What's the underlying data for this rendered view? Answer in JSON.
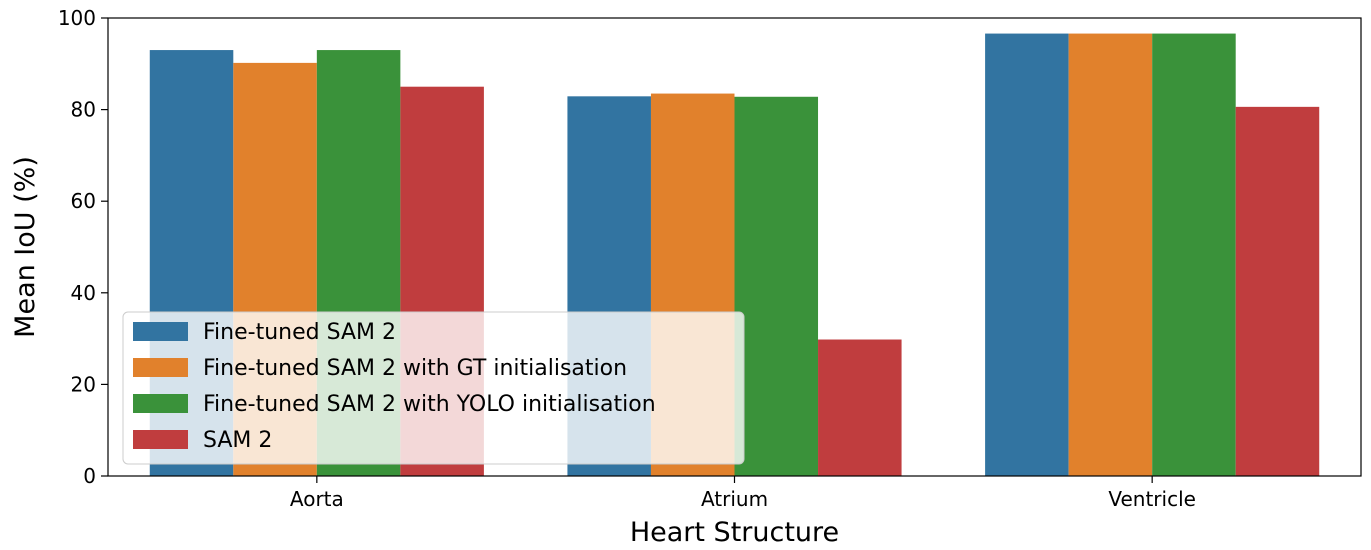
{
  "chart_data": {
    "type": "bar",
    "title": "",
    "xlabel": "Heart Structure",
    "ylabel": "Mean IoU (%)",
    "categories": [
      "Aorta",
      "Atrium",
      "Ventricle"
    ],
    "ylim": [
      0,
      100
    ],
    "yticks": [
      0,
      20,
      40,
      60,
      80,
      100
    ],
    "grid": false,
    "legend_position": "lower-left",
    "series": [
      {
        "name": "Fine-tuned SAM 2",
        "color": "#3274a1",
        "values": [
          93.0,
          82.9,
          96.6
        ]
      },
      {
        "name": "Fine-tuned SAM 2 with GT initialisation",
        "color": "#e1812c",
        "values": [
          90.2,
          83.5,
          96.6
        ]
      },
      {
        "name": "Fine-tuned SAM 2 with YOLO initialisation",
        "color": "#3a923a",
        "values": [
          93.0,
          82.8,
          96.6
        ]
      },
      {
        "name": "SAM 2",
        "color": "#c03d3e",
        "values": [
          85.0,
          29.8,
          80.6
        ]
      }
    ]
  }
}
